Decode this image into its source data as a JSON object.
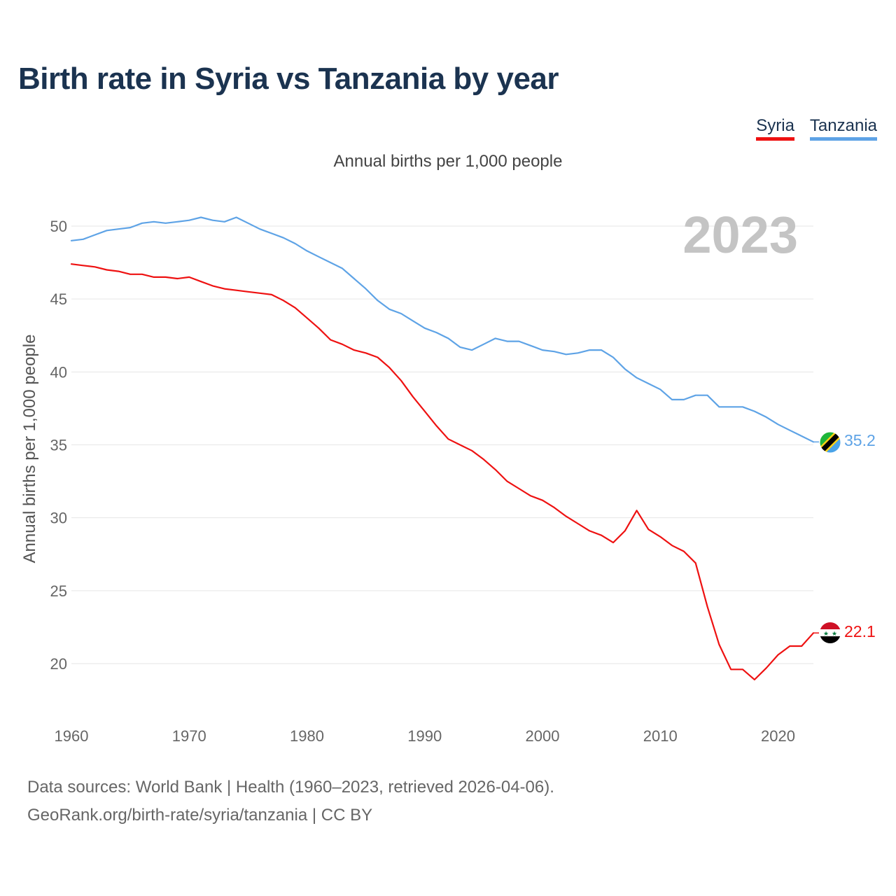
{
  "page": {
    "title": "Birth rate in Syria vs Tanzania by year",
    "subtitle": "Annual births per 1,000 people",
    "year_watermark": "2023",
    "source_line1": "Data sources: World Bank | Health (1960–2023, retrieved 2026-04-06).",
    "source_line2": "GeoRank.org/birth-rate/syria/tanzania | CC BY"
  },
  "legend": [
    {
      "label": "Syria",
      "color": "#ee1111"
    },
    {
      "label": "Tanzania",
      "color": "#5ea3e6"
    }
  ],
  "chart_data": {
    "type": "line",
    "title": "Birth rate in Syria vs Tanzania by year",
    "ylabel": "Annual births per 1,000 people",
    "xlabel": "",
    "xlim": [
      1960,
      2023
    ],
    "ylim": [
      17,
      52
    ],
    "x_ticks": [
      1960,
      1970,
      1980,
      1990,
      2000,
      2010,
      2020
    ],
    "y_ticks": [
      20,
      25,
      30,
      35,
      40,
      45,
      50
    ],
    "grid": true,
    "legend_position": "top-right",
    "x": [
      1960,
      1961,
      1962,
      1963,
      1964,
      1965,
      1966,
      1967,
      1968,
      1969,
      1970,
      1971,
      1972,
      1973,
      1974,
      1975,
      1976,
      1977,
      1978,
      1979,
      1980,
      1981,
      1982,
      1983,
      1984,
      1985,
      1986,
      1987,
      1988,
      1989,
      1990,
      1991,
      1992,
      1993,
      1994,
      1995,
      1996,
      1997,
      1998,
      1999,
      2000,
      2001,
      2002,
      2003,
      2004,
      2005,
      2006,
      2007,
      2008,
      2009,
      2010,
      2011,
      2012,
      2013,
      2014,
      2015,
      2016,
      2017,
      2018,
      2019,
      2020,
      2021,
      2022,
      2023
    ],
    "series": [
      {
        "name": "Syria",
        "color": "#ee1111",
        "end_label": "22.1",
        "flag": "syria-flag",
        "values": [
          47.4,
          47.3,
          47.2,
          47.0,
          46.9,
          46.7,
          46.7,
          46.5,
          46.5,
          46.4,
          46.5,
          46.2,
          45.9,
          45.7,
          45.6,
          45.5,
          45.4,
          45.3,
          44.9,
          44.4,
          43.7,
          43.0,
          42.2,
          41.9,
          41.5,
          41.3,
          41.0,
          40.3,
          39.4,
          38.3,
          37.3,
          36.3,
          35.4,
          35.0,
          34.6,
          34.0,
          33.3,
          32.5,
          32.0,
          31.5,
          31.2,
          30.7,
          30.1,
          29.6,
          29.1,
          28.8,
          28.3,
          29.1,
          30.5,
          29.2,
          28.7,
          28.1,
          27.7,
          26.9,
          23.9,
          21.3,
          19.6,
          19.6,
          18.9,
          19.7,
          20.6,
          21.2,
          21.2,
          22.1
        ]
      },
      {
        "name": "Tanzania",
        "color": "#5ea3e6",
        "end_label": "35.2",
        "flag": "tanzania-flag",
        "values": [
          49.0,
          49.1,
          49.4,
          49.7,
          49.8,
          49.9,
          50.2,
          50.3,
          50.2,
          50.3,
          50.4,
          50.6,
          50.4,
          50.3,
          50.6,
          50.2,
          49.8,
          49.5,
          49.2,
          48.8,
          48.3,
          47.9,
          47.5,
          47.1,
          46.4,
          45.7,
          44.9,
          44.3,
          44.0,
          43.5,
          43.0,
          42.7,
          42.3,
          41.7,
          41.5,
          41.9,
          42.3,
          42.1,
          42.1,
          41.8,
          41.5,
          41.4,
          41.2,
          41.3,
          41.5,
          41.5,
          41.0,
          40.2,
          39.6,
          39.2,
          38.8,
          38.1,
          38.1,
          38.4,
          38.4,
          37.6,
          37.6,
          37.6,
          37.3,
          36.9,
          36.4,
          36.0,
          35.6,
          35.2
        ]
      }
    ]
  }
}
